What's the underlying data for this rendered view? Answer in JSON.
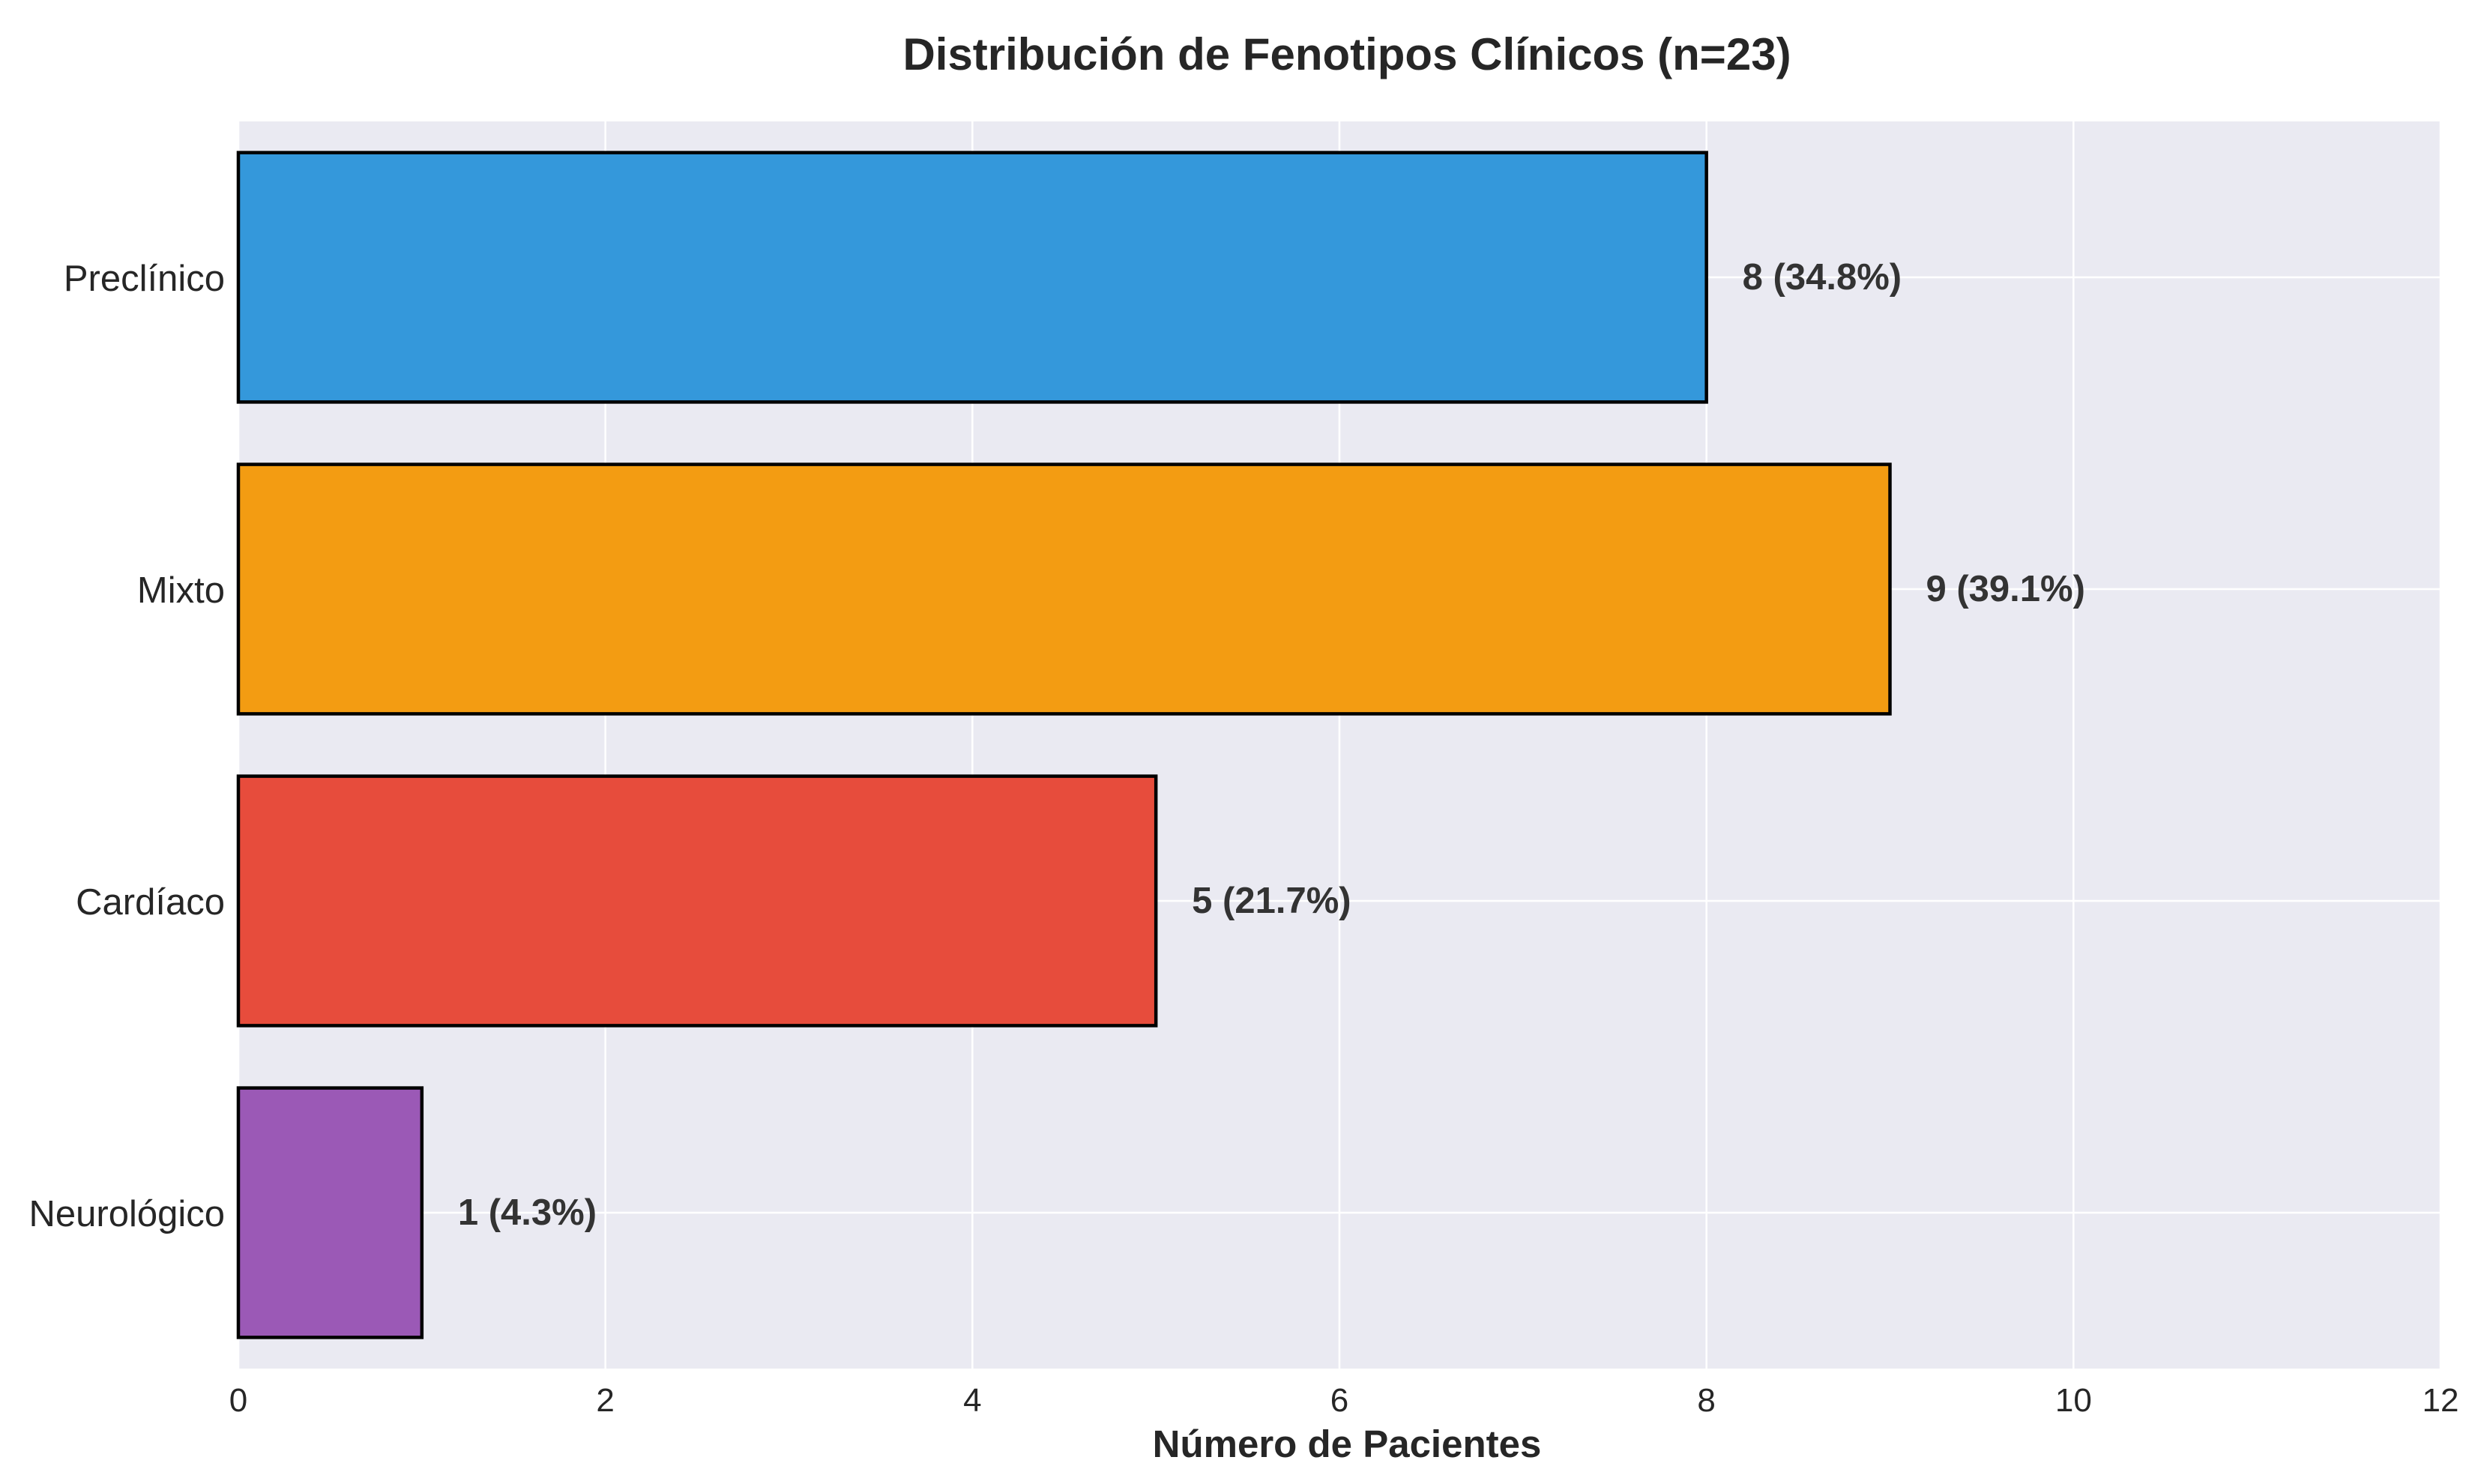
{
  "chart_data": {
    "type": "bar",
    "orientation": "horizontal",
    "title": "Distribución de Fenotipos Clínicos (n=23)",
    "xlabel": "Número de Pacientes",
    "ylabel": "",
    "xlim": [
      0,
      12
    ],
    "xticks": [
      0,
      2,
      4,
      6,
      8,
      10,
      12
    ],
    "grid": true,
    "background_color": "#eaeaf2",
    "categories": [
      "Preclínico",
      "Mixto",
      "Cardíaco",
      "Neurológico"
    ],
    "values": [
      8,
      9,
      5,
      1
    ],
    "value_labels": [
      "8 (34.8%)",
      "9 (39.1%)",
      "5 (21.7%)",
      "1 (4.3%)"
    ],
    "colors": [
      "#3498db",
      "#f39c12",
      "#e74c3c",
      "#9b59b6"
    ]
  }
}
